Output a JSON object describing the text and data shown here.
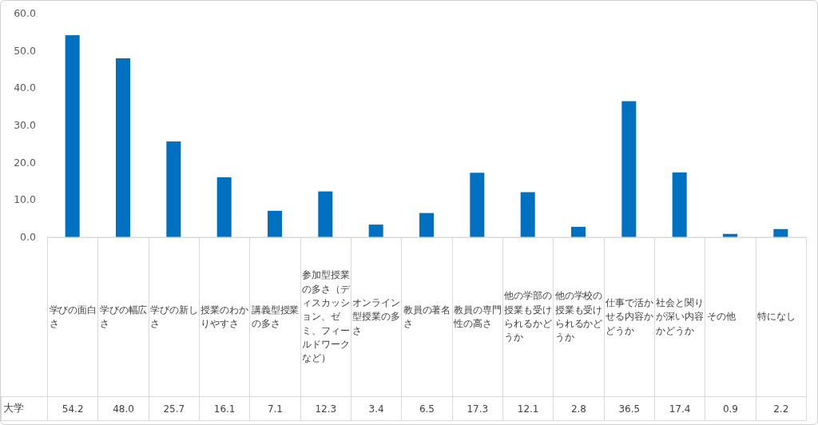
{
  "chart_data": {
    "type": "bar",
    "categories": [
      "学びの面白さ",
      "学びの幅広さ",
      "学びの新しさ",
      "授業のわかりやすさ",
      "講義型授業の多さ",
      "参加型授業の多さ（ディスカッション、ゼミ、フィールドワークなど）",
      "オンライン型授業の多さ",
      "教員の著名さ",
      "教員の専門性の高さ",
      "他の学部の授業も受けられるかどうか",
      "他の学校の授業も受けられるかどうか",
      "仕事で活かせる内容かどうか",
      "社会と関りが深い内容かどうか",
      "その他",
      "特になし"
    ],
    "series": [
      {
        "name": "大学",
        "color": "#0070c0",
        "values": [
          54.2,
          48.0,
          25.7,
          16.1,
          7.1,
          12.3,
          3.4,
          6.5,
          17.3,
          12.1,
          2.8,
          36.5,
          17.4,
          0.9,
          2.2
        ],
        "value_labels": [
          "54.2",
          "48.0",
          "25.7",
          "16.1",
          "7.1",
          "12.3",
          "3.4",
          "6.5",
          "17.3",
          "12.1",
          "2.8",
          "36.5",
          "17.4",
          "0.9",
          "2.2"
        ]
      }
    ],
    "ylim": [
      0,
      60
    ],
    "yticks": [
      {
        "value": 0,
        "label": "0.0"
      },
      {
        "value": 10,
        "label": "10.0"
      },
      {
        "value": 20,
        "label": "20.0"
      },
      {
        "value": 30,
        "label": "30.0"
      },
      {
        "value": 40,
        "label": "40.0"
      },
      {
        "value": 50,
        "label": "50.0"
      },
      {
        "value": 60,
        "label": "60.0"
      }
    ],
    "grid": false
  }
}
